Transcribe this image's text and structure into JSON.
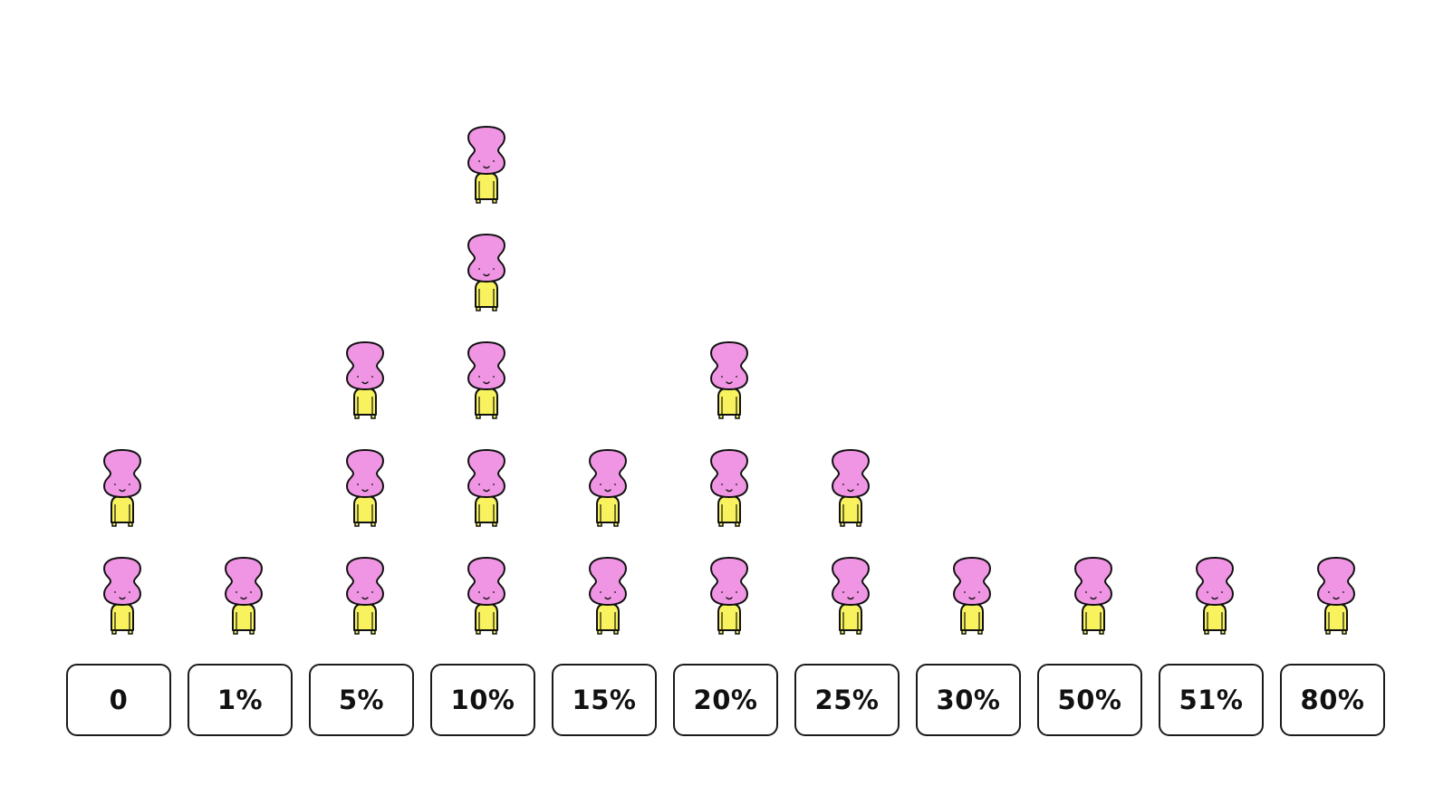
{
  "chart_data": {
    "type": "pictogram",
    "categories": [
      "0",
      "1%",
      "5%",
      "10%",
      "15%",
      "20%",
      "25%",
      "30%",
      "50%",
      "51%",
      "80%"
    ],
    "values": [
      2,
      1,
      3,
      5,
      2,
      3,
      2,
      1,
      1,
      1,
      1
    ],
    "title": "",
    "xlabel": "",
    "ylabel": ""
  },
  "style": {
    "head_color": "#f095e3",
    "body_color": "#f7f25e",
    "outline_color": "#111111",
    "icon": "person-icon"
  }
}
